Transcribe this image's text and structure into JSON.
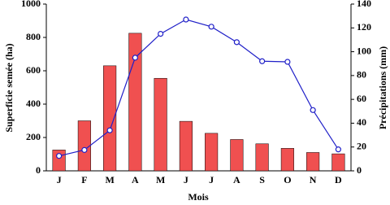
{
  "chart_data": {
    "type": "bar",
    "categories": [
      "J",
      "F",
      "M",
      "A",
      "M",
      "J",
      "J",
      "A",
      "S",
      "O",
      "N",
      "D"
    ],
    "series": [
      {
        "type": "bar",
        "color": "#f05050",
        "values": [
          125,
          300,
          630,
          825,
          555,
          297,
          225,
          188,
          162,
          135,
          110,
          102
        ]
      },
      {
        "type": "line",
        "axis": "y2",
        "color": "#2020c8",
        "values": [
          12.5,
          17.5,
          34,
          95,
          115,
          127,
          121,
          108,
          92,
          91.5,
          51,
          18
        ]
      }
    ],
    "ylim": [
      0,
      1000
    ],
    "yticks": [
      0,
      200,
      400,
      600,
      800,
      1000
    ],
    "y2lim": [
      0,
      140
    ],
    "y2ticks": [
      0,
      20,
      40,
      60,
      80,
      100,
      120,
      140
    ],
    "xlabel": "Mois",
    "ylabel": "Superficie semée (ha)",
    "y2label": "Précipitations (mm)"
  }
}
